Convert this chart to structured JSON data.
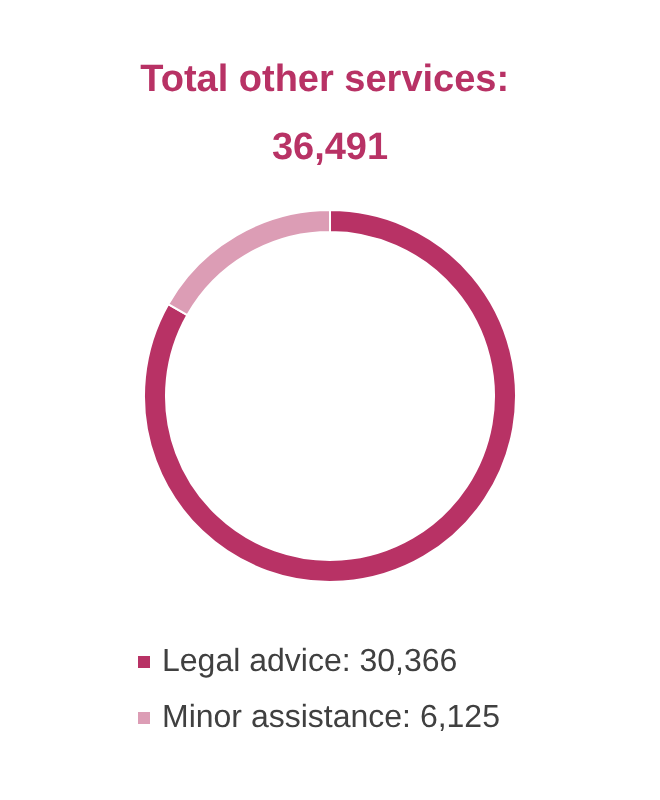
{
  "chart_data": {
    "type": "donut",
    "title": "Total other services: 36,491",
    "categories": [
      "Legal advice: 30,366",
      "Minor assistance: 6,125"
    ],
    "values": [
      30366,
      6125
    ],
    "colors": [
      "#b83265",
      "#dc9db5"
    ],
    "legend": "bottom"
  }
}
